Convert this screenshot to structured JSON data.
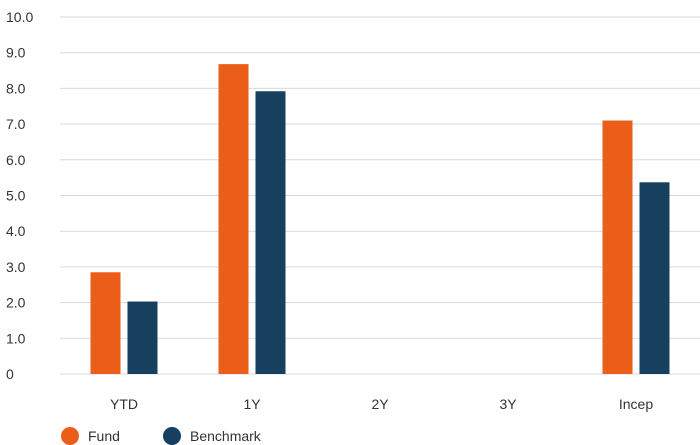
{
  "chart_data": {
    "type": "bar",
    "categories": [
      "YTD",
      "1Y",
      "2Y",
      "3Y",
      "Incep"
    ],
    "series": [
      {
        "name": "Fund",
        "color": "#ea5e1a",
        "values": [
          2.85,
          8.68,
          null,
          null,
          7.1
        ]
      },
      {
        "name": "Benchmark",
        "color": "#17405e",
        "values": [
          2.03,
          7.92,
          null,
          null,
          5.37
        ]
      }
    ],
    "yticks": [
      "0",
      "1.0",
      "2.0",
      "3.0",
      "4.0",
      "5.0",
      "6.0",
      "7.0",
      "8.0",
      "9.0",
      "10.0"
    ],
    "ylim": [
      0,
      10
    ],
    "grid": true,
    "gridColor": "#d9d9d9",
    "legend_position": "bottom-left"
  }
}
